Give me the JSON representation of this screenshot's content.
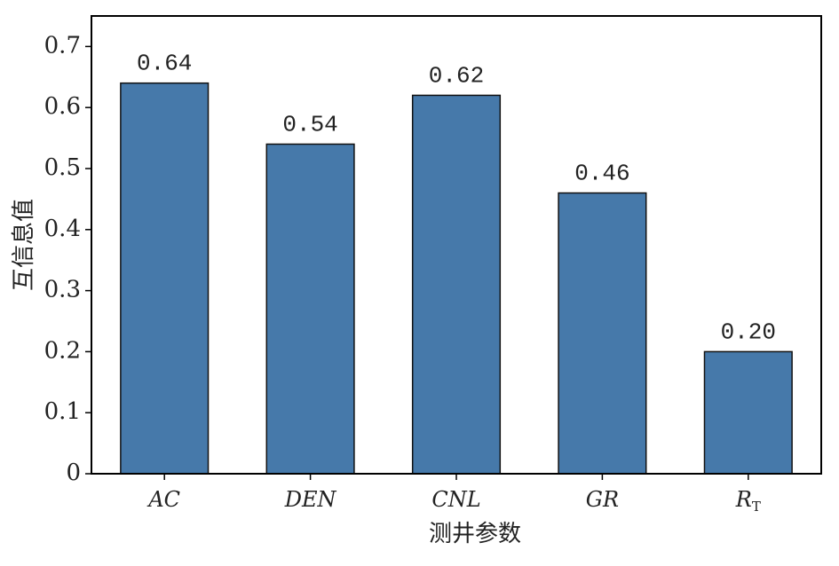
{
  "chart_data": {
    "type": "bar",
    "x_label": "测井参数",
    "y_label": "互信息值",
    "categories": [
      "AC",
      "DEN",
      "CNL",
      "GR",
      "R"
    ],
    "category_subscripts": [
      null,
      null,
      null,
      null,
      "T"
    ],
    "values": [
      0.64,
      0.54,
      0.62,
      0.46,
      0.2
    ],
    "value_labels": [
      "0.64",
      "0.54",
      "0.62",
      "0.46",
      "0.20"
    ],
    "color": "#4679aa",
    "ylim": [
      0,
      0.75
    ],
    "yticks": [
      0,
      0.1,
      0.2,
      0.3,
      0.4,
      0.5,
      0.6,
      0.7
    ]
  }
}
